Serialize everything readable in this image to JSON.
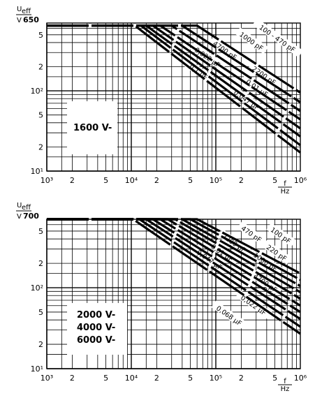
{
  "chart_data": [
    {
      "type": "line",
      "scale": "log-log",
      "ylabel": "U_eff",
      "yunit": "V",
      "xlabel": "f",
      "xunit": "Hz",
      "ymax_label": "650",
      "voltage_label": "1600 V-",
      "xlim": [
        1000,
        1000000
      ],
      "ylim": [
        10,
        700
      ],
      "x_tick_labels": [
        "10³",
        "2",
        "5",
        "10⁴",
        "2",
        "5",
        "10⁵",
        "2",
        "5",
        "10⁶"
      ],
      "y_tick_labels": [
        "5",
        "2",
        "10²",
        "5",
        "2",
        "10¹"
      ],
      "series": [
        {
          "name": "100 - 470 pF",
          "x": [
            60000,
            1000000
          ],
          "y": [
            650,
            95
          ]
        },
        {
          "name": "1000 pF",
          "x": [
            40000,
            1000000
          ],
          "y": [
            650,
            72
          ]
        },
        {
          "name": "2200 pF",
          "x": [
            30000,
            1000000
          ],
          "y": [
            650,
            56
          ]
        },
        {
          "name": "4700 pF",
          "x": [
            22000,
            1000000
          ],
          "y": [
            650,
            44
          ]
        },
        {
          "name": "0,01 µF",
          "x": [
            18000,
            1000000
          ],
          "y": [
            650,
            34
          ]
        },
        {
          "name": "0,022 µF",
          "x": [
            15000,
            1000000
          ],
          "y": [
            650,
            27
          ]
        },
        {
          "name": "0,047 µF",
          "x": [
            13000,
            1000000
          ],
          "y": [
            650,
            21
          ]
        },
        {
          "name": "0,1 µF",
          "x": [
            11000,
            1000000
          ],
          "y": [
            650,
            17
          ]
        }
      ]
    },
    {
      "type": "line",
      "scale": "log-log",
      "ylabel": "U_eff",
      "yunit": "V",
      "xlabel": "f",
      "xunit": "Hz",
      "ymax_label": "700",
      "voltage_label": "2000 V-\n4000 V-\n6000 V-",
      "xlim": [
        1000,
        1000000
      ],
      "ylim": [
        10,
        700
      ],
      "x_tick_labels": [
        "10³",
        "2",
        "5",
        "10⁴",
        "2",
        "5",
        "10⁵",
        "2",
        "5",
        "10⁶"
      ],
      "y_tick_labels": [
        "5",
        "2",
        "10²",
        "5",
        "2",
        "10¹"
      ],
      "series": [
        {
          "name": "100 pF",
          "x": [
            60000,
            1000000
          ],
          "y": [
            700,
            150
          ]
        },
        {
          "name": "220 pF",
          "x": [
            50000,
            1000000
          ],
          "y": [
            700,
            125
          ]
        },
        {
          "name": "470 pF",
          "x": [
            40000,
            1000000
          ],
          "y": [
            700,
            105
          ]
        },
        {
          "name": "1000 pF",
          "x": [
            33000,
            1000000
          ],
          "y": [
            700,
            88
          ]
        },
        {
          "name": "2200 pF",
          "x": [
            27000,
            1000000
          ],
          "y": [
            700,
            73
          ]
        },
        {
          "name": "4700 pF",
          "x": [
            22000,
            1000000
          ],
          "y": [
            700,
            60
          ]
        },
        {
          "name": "0,01 µF",
          "x": [
            18000,
            1000000
          ],
          "y": [
            700,
            50
          ]
        },
        {
          "name": "0,022 µF",
          "x": [
            15000,
            1000000
          ],
          "y": [
            700,
            41
          ]
        },
        {
          "name": "0,047 µF",
          "x": [
            12500,
            1000000
          ],
          "y": [
            700,
            33
          ]
        },
        {
          "name": "0,068 µF",
          "x": [
            10500,
            1000000
          ],
          "y": [
            700,
            27
          ]
        }
      ]
    }
  ],
  "panels": [
    {
      "ylabel_top": "U",
      "ylabel_sub": "eff",
      "yunit": "V",
      "ymax_label": "650",
      "xlabel": "f",
      "xunit": "Hz",
      "voltage_lines": [
        "1600 V-"
      ],
      "x_ticks": [
        "10³",
        "2",
        "5",
        "10⁴",
        "2",
        "5",
        "10⁵",
        "2",
        "5",
        "10⁶"
      ],
      "y_ticks": [
        "5",
        "2",
        "10²",
        "5",
        "2",
        "10¹"
      ],
      "curve_labels": [
        "100 - 470 pF",
        "1000 pF",
        "2200 pF",
        "4700 pF",
        "0,01 µF",
        "0,022 µF",
        "0,047 µF",
        "0,1 µF"
      ]
    },
    {
      "ylabel_top": "U",
      "ylabel_sub": "eff",
      "yunit": "V",
      "ymax_label": "700",
      "xlabel": "f",
      "xunit": "Hz",
      "voltage_lines": [
        "2000 V-",
        "4000 V-",
        "6000 V-"
      ],
      "x_ticks": [
        "10³",
        "2",
        "5",
        "10⁴",
        "2",
        "5",
        "10⁵",
        "2",
        "5",
        "10⁶"
      ],
      "y_ticks": [
        "5",
        "2",
        "10²",
        "5",
        "2",
        "10¹"
      ],
      "curve_labels": [
        "100 pF",
        "220 pF",
        "470 pF",
        "1000 pF",
        "2200 pF",
        "4700 pF",
        "0,01 µF",
        "0,022 µF",
        "0,047 µF",
        "0,068 µF"
      ]
    }
  ]
}
